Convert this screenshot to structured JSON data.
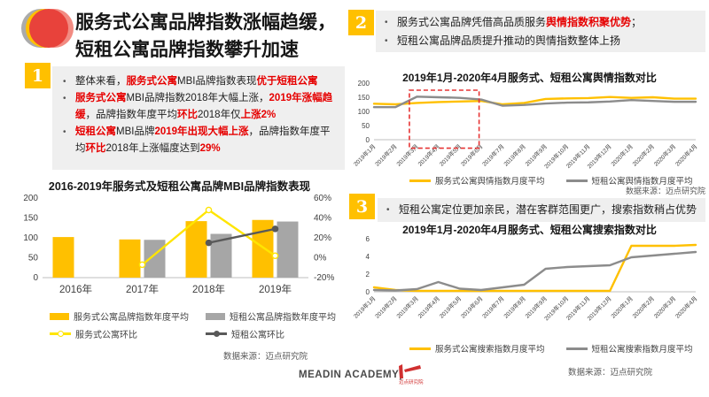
{
  "slide": {
    "title_line1": "服务式公寓品牌指数涨幅趋缓，",
    "title_line2": "短租公寓品牌指数攀升加速",
    "footer": {
      "brand": "MEADIN ACADEMY|",
      "logo_text": "迈点研究院"
    }
  },
  "colors": {
    "accent_yellow": "#FFC000",
    "highlight_red": "#E60000",
    "bar_gray": "#A6A6A6",
    "line_dark_gray": "#595959",
    "line_gray": "#8C8C8C",
    "panel_gray": "#EFEFEF",
    "dashed_box_red": "#E63333"
  },
  "sections": [
    {
      "num": "1",
      "bullets": [
        [
          {
            "t": "整体来看，"
          },
          {
            "t": "服务式公寓",
            "hl": 1
          },
          {
            "t": "MBI品牌指数表现"
          },
          {
            "t": "优于短租公寓",
            "hl": 1
          }
        ],
        [
          {
            "t": "服务式公寓",
            "hl": 1
          },
          {
            "t": "MBI品牌指数2018年大幅上涨，"
          },
          {
            "t": "2019年涨幅趋缓",
            "hl": 1
          },
          {
            "t": "，品牌指数年度平均"
          },
          {
            "t": "环比",
            "hl": 1
          },
          {
            "t": "2018年仅"
          },
          {
            "t": "上涨2%",
            "hl": 1
          }
        ],
        [
          {
            "t": "短租公寓",
            "hl": 1
          },
          {
            "t": "MBI品牌"
          },
          {
            "t": "2019年出现大幅上涨",
            "hl": 1
          },
          {
            "t": "，品牌指数年度平均"
          },
          {
            "t": "环比",
            "hl": 1
          },
          {
            "t": "2018年上涨幅度达到"
          },
          {
            "t": "29%",
            "hl": 1
          }
        ]
      ]
    },
    {
      "num": "2",
      "bullets": [
        [
          {
            "t": "服务式公寓品牌凭借高品质服务"
          },
          {
            "t": "舆情指数积聚优势",
            "hl": 1
          },
          {
            "t": "；"
          }
        ],
        [
          {
            "t": "短租公寓品牌品质提升推动的舆情指数整体上扬"
          }
        ]
      ]
    },
    {
      "num": "3",
      "bullets": [
        [
          {
            "t": "短租公寓定位更加亲民，潜在客群范围更广，搜索指数稍占优势"
          }
        ]
      ]
    }
  ],
  "chart_data": [
    {
      "type": "bar",
      "title": "2016-2019年服务式及短租公寓品牌MBI品牌指数表现",
      "categories": [
        "2016年",
        "2017年",
        "2018年",
        "2019年"
      ],
      "y_left": {
        "min": 0,
        "max": 200,
        "ticks": [
          0,
          50,
          100,
          150,
          200
        ]
      },
      "y_right": {
        "min": -20,
        "max": 60,
        "ticks": [
          -20,
          0,
          20,
          40,
          60
        ],
        "suffix": "%"
      },
      "bar_series": [
        {
          "name": "服务式公寓品牌指数年度平均",
          "color": "#FFC000",
          "values": [
            102,
            96,
            142,
            145
          ]
        },
        {
          "name": "短租公寓品牌指数年度平均",
          "color": "#A6A6A6",
          "values": [
            null,
            95,
            110,
            141
          ]
        }
      ],
      "line_series": [
        {
          "name": "服务式公寓环比",
          "color": "#FFE500",
          "axis": "right",
          "marker": "hollow",
          "values": [
            null,
            -7,
            48,
            2
          ]
        },
        {
          "name": "短租公寓环比",
          "color": "#595959",
          "axis": "right",
          "marker": "solid",
          "values": [
            null,
            null,
            15,
            29
          ]
        }
      ],
      "legend_position": "bottom",
      "grid": false,
      "source": "数据来源：迈点研究院"
    },
    {
      "type": "line",
      "title": "2019年1月-2020年4月服务式、短租公寓舆情指数对比",
      "categories": [
        "2019年1月",
        "2019年2月",
        "2019年3月",
        "2019年4月",
        "2019年5月",
        "2019年6月",
        "2019年7月",
        "2019年8月",
        "2019年9月",
        "2019年10月",
        "2019年11月",
        "2019年12月",
        "2020年1月",
        "2020年2月",
        "2020年3月",
        "2020年4月"
      ],
      "y_left": {
        "min": 0,
        "max": 200,
        "ticks": [
          0,
          50,
          100,
          150,
          200
        ]
      },
      "rotate_labels": true,
      "series": [
        {
          "name": "服务式公寓舆情指数月度平均",
          "color": "#FFC000",
          "values": [
            127,
            125,
            130,
            133,
            135,
            137,
            125,
            130,
            144,
            146,
            147,
            151,
            148,
            150,
            145,
            145
          ]
        },
        {
          "name": "短租公寓舆情指数月度平均",
          "color": "#8C8C8C",
          "values": [
            115,
            115,
            152,
            150,
            148,
            142,
            120,
            123,
            128,
            131,
            132,
            135,
            140,
            137,
            134,
            134
          ]
        }
      ],
      "highlight": {
        "label": "2019年3月-2019年6月",
        "x_start_index": 1.65,
        "x_end_index": 4.9,
        "top_value": 175,
        "bottom_value": -30,
        "color": "#E63333"
      },
      "legend_position": "bottom",
      "grid": false,
      "source": "数据来源：迈点研究院"
    },
    {
      "type": "line",
      "title": "2019年1月-2020年4月服务式、短租公寓搜索指数对比",
      "categories": [
        "2019年1月",
        "2019年2月",
        "2019年3月",
        "2019年4月",
        "2019年5月",
        "2019年6月",
        "2019年7月",
        "2019年8月",
        "2019年9月",
        "2019年10月",
        "2019年11月",
        "2019年12月",
        "2020年1月",
        "2020年2月",
        "2020年3月",
        "2020年4月"
      ],
      "y_left": {
        "min": 0,
        "max": 6,
        "ticks": [
          0,
          2,
          4,
          6
        ]
      },
      "rotate_labels": true,
      "series": [
        {
          "name": "服务式公寓搜索指数月度平均",
          "color": "#FFC000",
          "values": [
            0.5,
            0.2,
            0.1,
            0.1,
            0.1,
            0.1,
            0.1,
            0.1,
            0.1,
            0.1,
            0.1,
            0.1,
            5.2,
            5.2,
            5.2,
            5.3
          ]
        },
        {
          "name": "短租公寓搜索指数月度平均",
          "color": "#8C8C8C",
          "values": [
            0.2,
            0.15,
            0.3,
            1.1,
            0.35,
            0.2,
            0.5,
            0.8,
            2.6,
            2.8,
            2.9,
            3.0,
            3.9,
            4.1,
            4.3,
            4.5
          ]
        }
      ],
      "legend_position": "bottom",
      "grid": false,
      "source": "数据来源：迈点研究院"
    }
  ]
}
